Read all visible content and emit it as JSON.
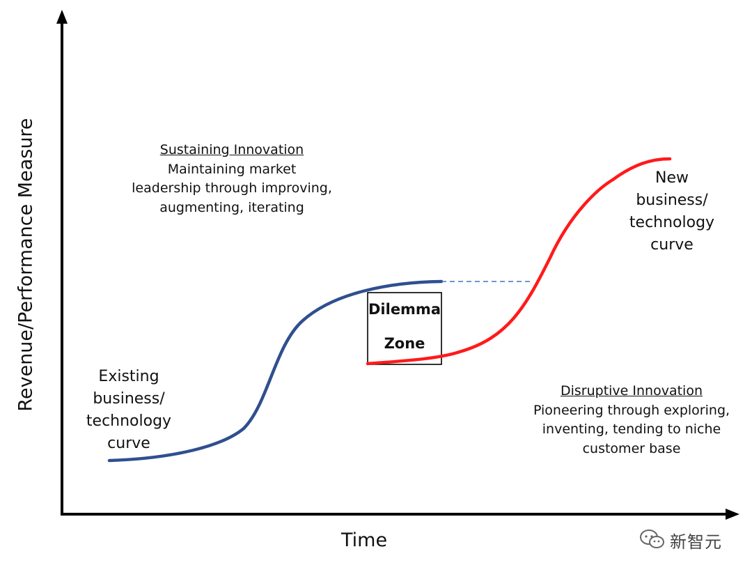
{
  "axes": {
    "x_label": "Time",
    "y_label": "Revenue/Performance Measure"
  },
  "sustaining": {
    "title": "Sustaining Innovation",
    "lines": [
      "Maintaining market",
      "leadership through improving,",
      "augmenting, iterating"
    ]
  },
  "disruptive": {
    "title": "Disruptive Innovation",
    "lines": [
      "Pioneering through exploring,",
      "inventing, tending to niche",
      "customer base"
    ]
  },
  "existing_curve": {
    "lines": [
      "Existing",
      "business/",
      "technology",
      "curve"
    ],
    "color": "#2f4f8f"
  },
  "new_curve": {
    "lines": [
      "New",
      "business/",
      "technology",
      "curve"
    ],
    "color": "#ff1a1a"
  },
  "dilemma_zone": {
    "lines": [
      "Dilemma",
      "Zone"
    ]
  },
  "watermark": {
    "text": "新智元",
    "icon": "wechat-icon"
  }
}
